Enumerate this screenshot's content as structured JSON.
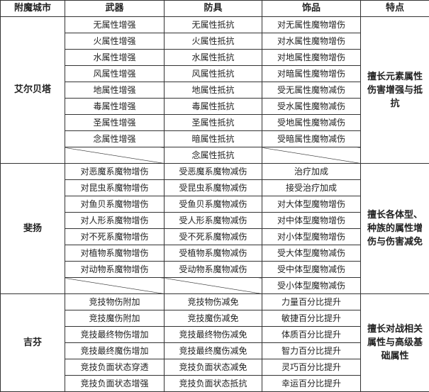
{
  "headers": [
    "附魔城市",
    "武器",
    "防具",
    "饰品",
    "特点"
  ],
  "sections": [
    {
      "city": "艾尔贝塔",
      "feature": "擅长元素属性伤害增强与抵抗",
      "rows": [
        [
          "无属性增强",
          "无属性抵抗",
          "对无属性魔物增伤"
        ],
        [
          "火属性增强",
          "火属性抵抗",
          "对水属性魔物增伤"
        ],
        [
          "水属性增强",
          "水属性抵抗",
          "对地属性魔物增伤"
        ],
        [
          "风属性增强",
          "风属性抵抗",
          "对暗属性魔物增伤"
        ],
        [
          "地属性增强",
          "地属性抵抗",
          "受无属性魔物减伤"
        ],
        [
          "毒属性增强",
          "毒属性抵抗",
          "受水属性魔物减伤"
        ],
        [
          "圣属性增强",
          "圣属性抵抗",
          "受地属性魔物减伤"
        ],
        [
          "念属性增强",
          "暗属性抵抗",
          "受暗属性魔物减伤"
        ],
        [
          "",
          "念属性抵抗",
          ""
        ]
      ]
    },
    {
      "city": "斐扬",
      "feature": "擅长各体型、种族的属性增伤与伤害减免",
      "rows": [
        [
          "对恶魔系魔物增伤",
          "受恶魔系魔物减伤",
          "治疗加成"
        ],
        [
          "对昆虫系魔物增伤",
          "受昆虫系魔物减伤",
          "接受治疗加成"
        ],
        [
          "对鱼贝系魔物增伤",
          "受鱼贝系魔物减伤",
          "对大体型魔物增伤"
        ],
        [
          "对人形系魔物增伤",
          "受人形系魔物减伤",
          "对中体型魔物增伤"
        ],
        [
          "对不死系魔物增伤",
          "受不死系魔物减伤",
          "对小体型魔物增伤"
        ],
        [
          "对植物系魔物增伤",
          "受植物系魔物减伤",
          "受大体型魔物减伤"
        ],
        [
          "对动物系魔物增伤",
          "受动物系魔物减伤",
          "受中体型魔物减伤"
        ],
        [
          "",
          "",
          "受小体型魔物减伤"
        ]
      ]
    },
    {
      "city": "吉芬",
      "feature": "擅长对战相关属性与高级基础属性",
      "rows": [
        [
          "竞技物伤附加",
          "竞技物伤减免",
          "力量百分比提升"
        ],
        [
          "竞技魔伤附加",
          "竞技魔伤减免",
          "敏捷百分比提升"
        ],
        [
          "竞技最终物伤增加",
          "竞技最终物伤减免",
          "体质百分比提升"
        ],
        [
          "竞技最终魔伤增加",
          "竞技最终魔伤减免",
          "智力百分比提升"
        ],
        [
          "竞技负面状态穿透",
          "竞技负面状态减免",
          "灵巧百分比提升"
        ],
        [
          "竞技负面状态增强",
          "竞技负面状态抵抗",
          "幸运百分比提升"
        ]
      ]
    }
  ]
}
